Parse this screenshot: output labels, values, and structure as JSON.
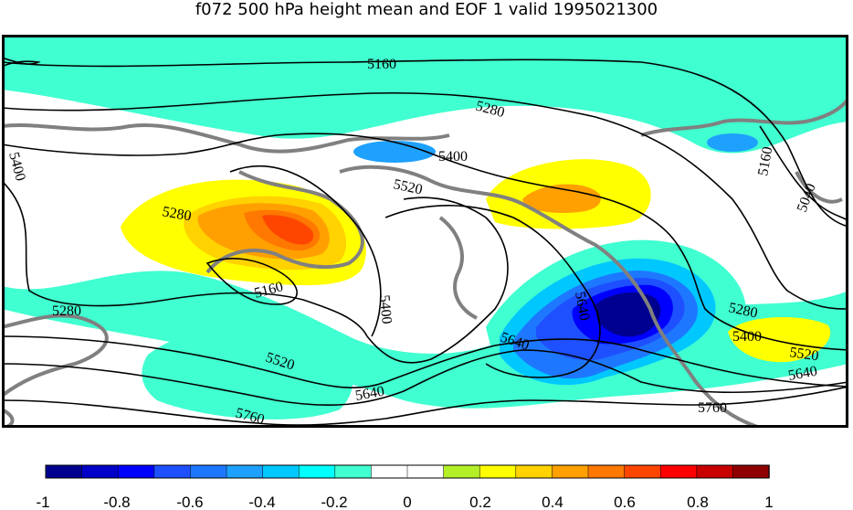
{
  "title": "f072 500 hPa height mean and EOF 1 valid 1995021300",
  "contour_labels": [
    "5160",
    "5280",
    "5400",
    "5520",
    "5640",
    "5760",
    "5040"
  ],
  "colorbar": {
    "ticks": [
      "-1",
      "-0.8",
      "-0.6",
      "-0.4",
      "-0.2",
      "0",
      "0.2",
      "0.4",
      "0.6",
      "0.8",
      "1"
    ],
    "colors": [
      "#000090",
      "#0000c8",
      "#0000ff",
      "#1e50ff",
      "#1e78ff",
      "#1ea0ff",
      "#00c8ff",
      "#00ffff",
      "#40ffd0",
      "#ffffff",
      "#ffffff",
      "#b4f028",
      "#ffff00",
      "#ffd200",
      "#ffa000",
      "#ff7800",
      "#ff4600",
      "#ff0000",
      "#c80000",
      "#900000"
    ]
  },
  "field_colors": {
    "background": "#ffffff",
    "teal": "#40ffd0",
    "light_blue": "#1ea0ff",
    "blue": "#1e50ff",
    "dark_blue": "#000090",
    "yellow": "#ffff00",
    "orange": "#ffa000",
    "red_orange": "#ff4600",
    "coastline": "#808080",
    "contour": "#000000"
  }
}
